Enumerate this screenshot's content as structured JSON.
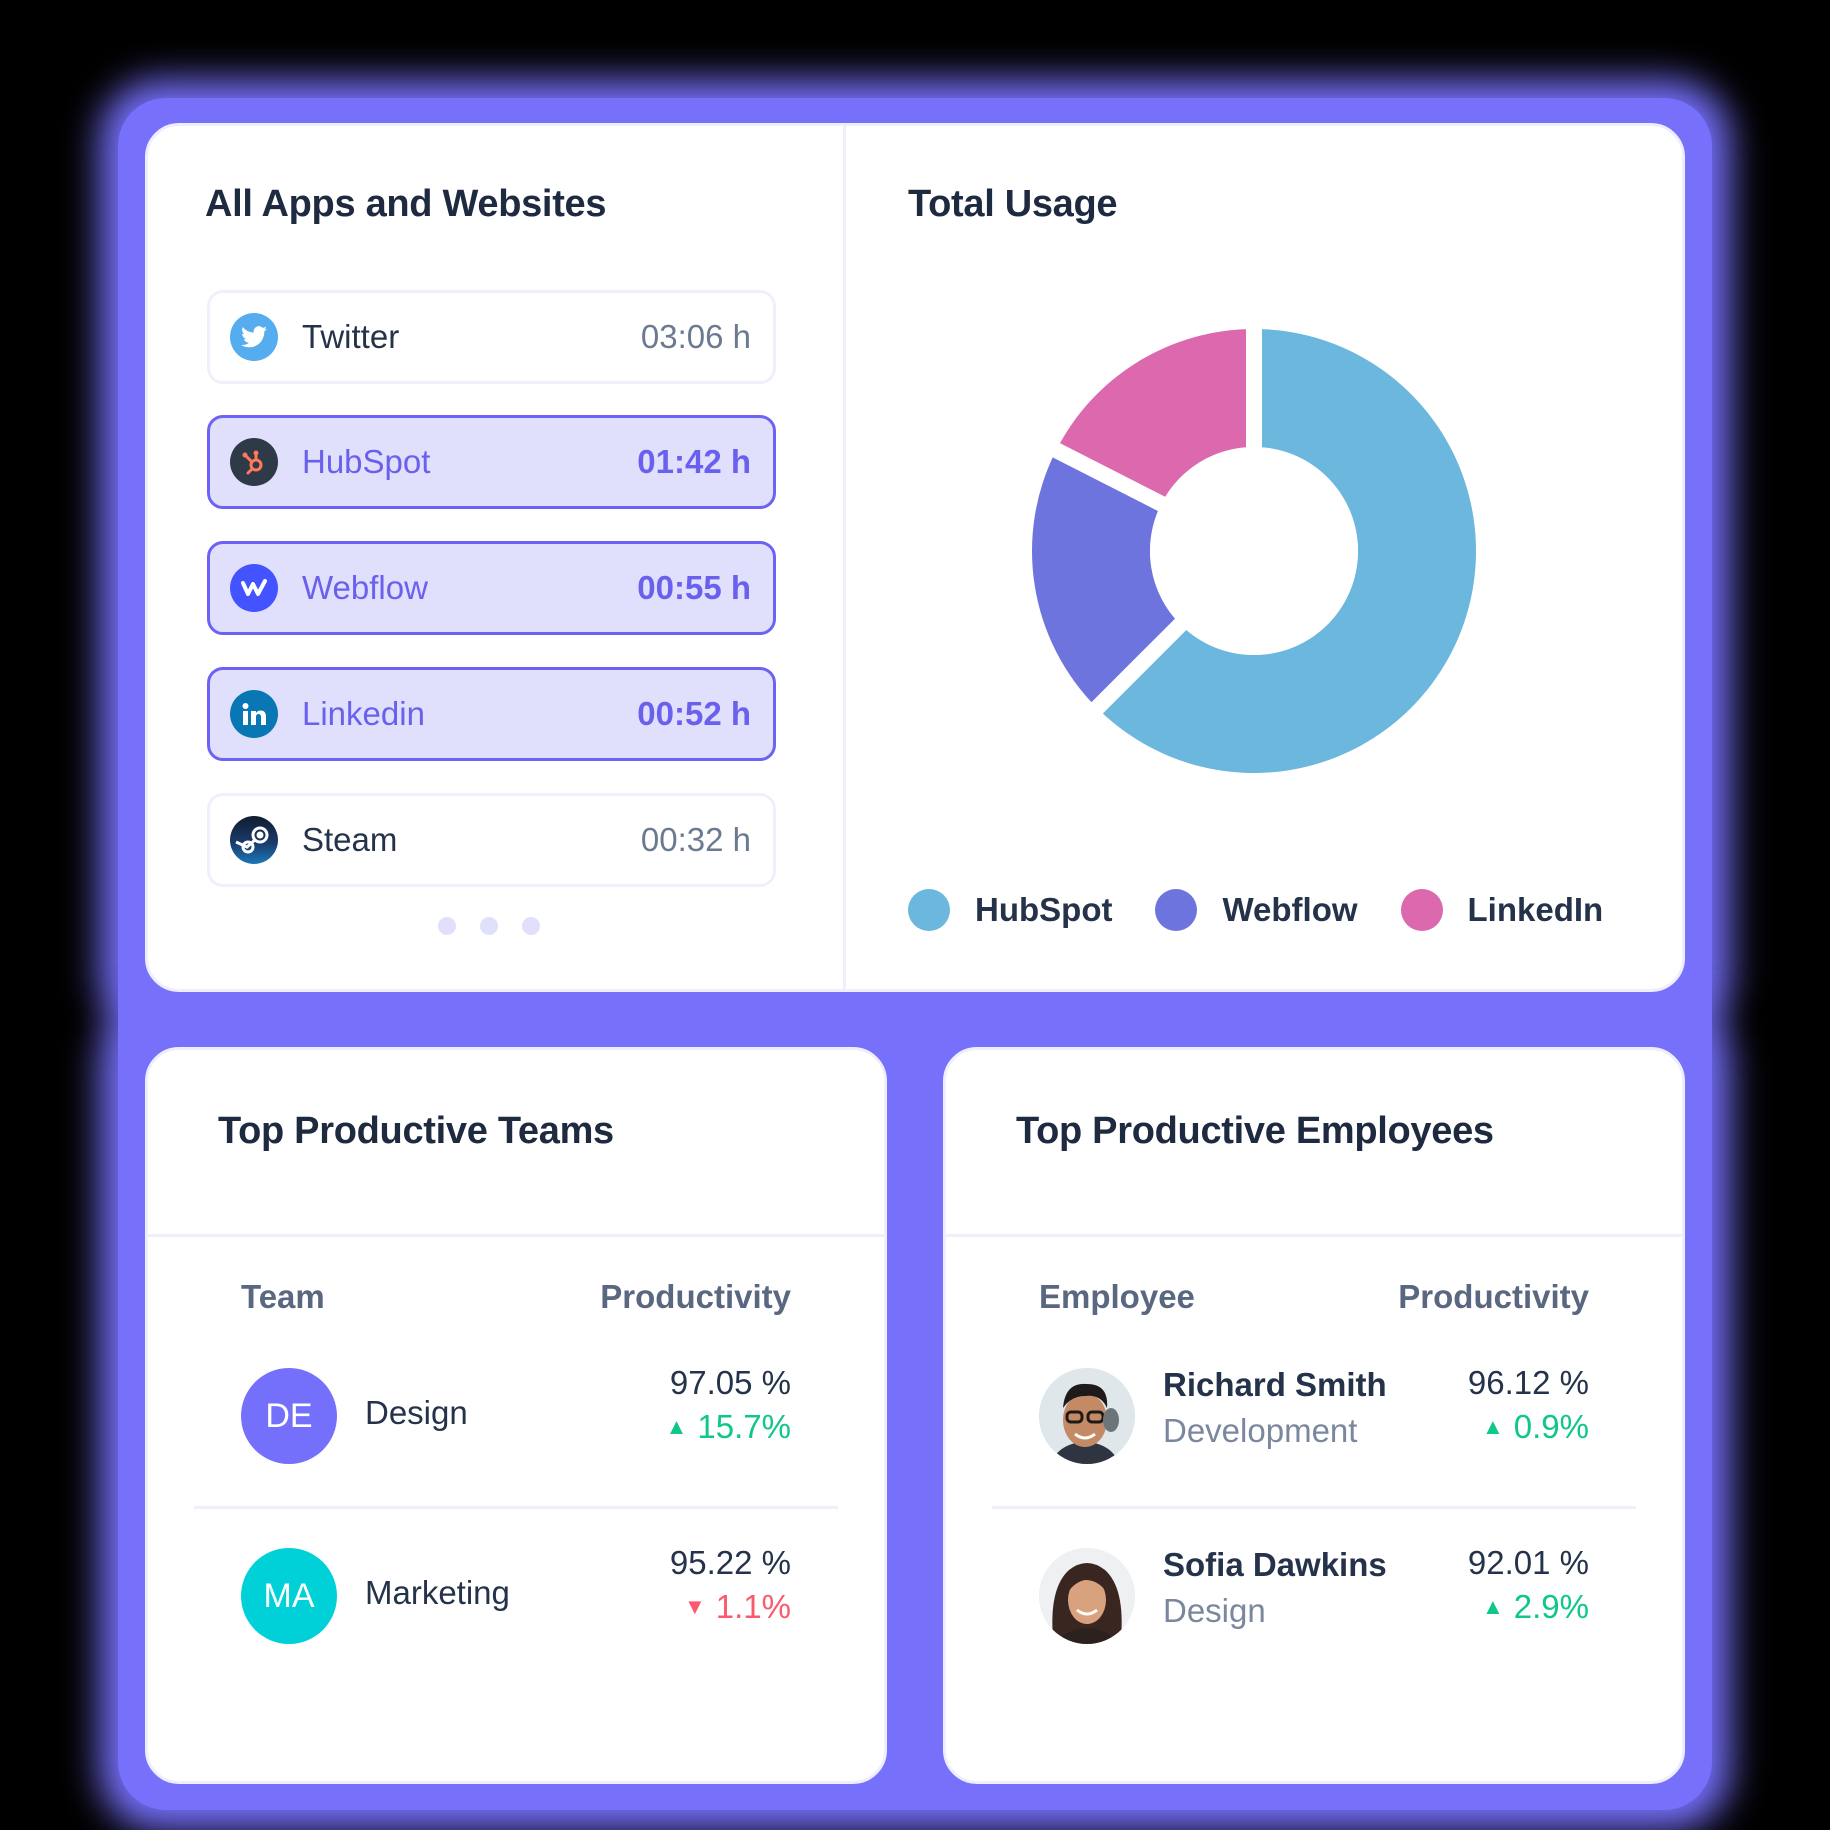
{
  "apps": {
    "title": "All Apps and Websites",
    "items": [
      {
        "name": "Twitter",
        "time": "03:06 h",
        "icon": "twitter-icon",
        "active": false
      },
      {
        "name": "HubSpot",
        "time": "01:42 h",
        "icon": "hubspot-icon",
        "active": true
      },
      {
        "name": "Webflow",
        "time": "00:55 h",
        "icon": "webflow-icon",
        "active": true
      },
      {
        "name": "Linkedin",
        "time": "00:52 h",
        "icon": "linkedin-icon",
        "active": true
      },
      {
        "name": "Steam",
        "time": "00:32 h",
        "icon": "steam-icon",
        "active": false
      }
    ],
    "pager_dots": 3
  },
  "usage": {
    "title": "Total Usage",
    "legend": [
      {
        "label": "HubSpot",
        "color": "#6bb7dd"
      },
      {
        "label": "Webflow",
        "color": "#6d74dd"
      },
      {
        "label": "LinkedIn",
        "color": "#dc69ad"
      }
    ]
  },
  "chart_data": {
    "type": "pie",
    "title": "Total Usage",
    "categories": [
      "HubSpot",
      "Webflow",
      "LinkedIn"
    ],
    "values": [
      62.5,
      20,
      17.5
    ],
    "colors": [
      "#6bb7dd",
      "#6d74dd",
      "#dc69ad"
    ],
    "donut": true,
    "legend_position": "bottom"
  },
  "teams": {
    "title": "Top Productive Teams",
    "col_left": "Team",
    "col_right": "Productivity",
    "rows": [
      {
        "initials": "DE",
        "name": "Design",
        "productivity": "97.05 %",
        "delta": "15.7%",
        "trend": "up",
        "color": "#7570fb"
      },
      {
        "initials": "MA",
        "name": "Marketing",
        "productivity": "95.22 %",
        "delta": "1.1%",
        "trend": "down",
        "color": "#00d1d8"
      }
    ]
  },
  "employees": {
    "title": "Top Productive Employees",
    "col_left": "Employee",
    "col_right": "Productivity",
    "rows": [
      {
        "name": "Richard Smith",
        "department": "Development",
        "productivity": "96.12 %",
        "delta": "0.9%",
        "trend": "up"
      },
      {
        "name": "Sofia Dawkins",
        "department": "Design",
        "productivity": "92.01 %",
        "delta": "2.9%",
        "trend": "up"
      }
    ]
  },
  "colors": {
    "accent": "#6c63f5",
    "glow": "#7670fb",
    "up": "#10c78a",
    "down": "#fb5a6e"
  }
}
